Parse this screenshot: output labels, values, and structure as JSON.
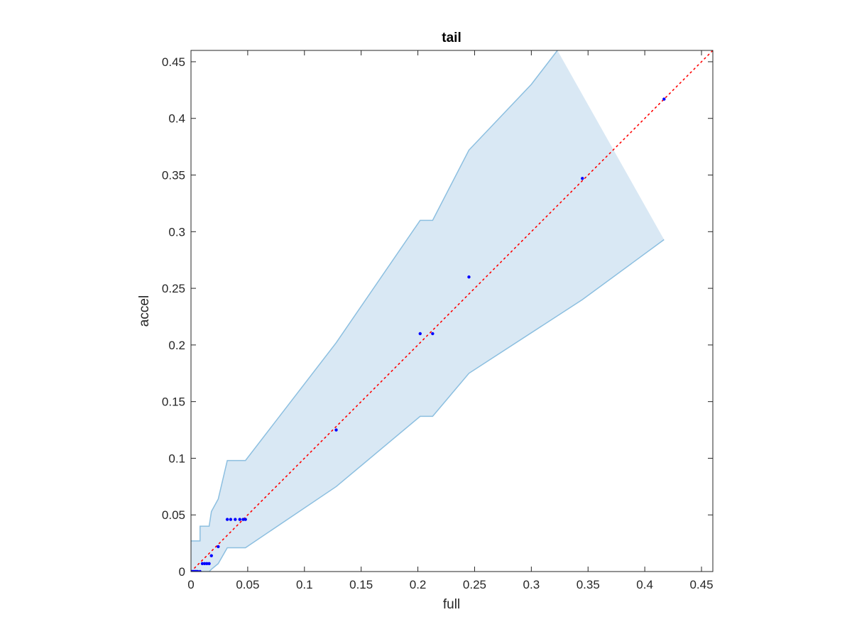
{
  "chart_data": {
    "type": "scatter",
    "title": "tail",
    "xlabel": "full",
    "ylabel": "accel",
    "xlim": [
      0,
      0.46
    ],
    "ylim": [
      0,
      0.46
    ],
    "xticks": [
      0,
      0.05,
      0.1,
      0.15,
      0.2,
      0.25,
      0.3,
      0.35,
      0.4,
      0.45
    ],
    "yticks": [
      0,
      0.05,
      0.1,
      0.15,
      0.2,
      0.25,
      0.3,
      0.35,
      0.4,
      0.45
    ],
    "xtick_labels": [
      "0",
      "0.05",
      "0.1",
      "0.15",
      "0.2",
      "0.25",
      "0.3",
      "0.35",
      "0.4",
      "0.45"
    ],
    "ytick_labels": [
      "0",
      "0.05",
      "0.1",
      "0.15",
      "0.2",
      "0.25",
      "0.3",
      "0.35",
      "0.4",
      "0.45"
    ],
    "grid": false,
    "colors": {
      "points": "#0000ff",
      "identity": "#ff0000",
      "band_fill": "#d9e8f4",
      "band_edge": "#8cbfe0",
      "axes": "#262626"
    },
    "points": [
      {
        "x": 0.0,
        "y": 0.0
      },
      {
        "x": 0.001,
        "y": 0.0
      },
      {
        "x": 0.002,
        "y": 0.0
      },
      {
        "x": 0.003,
        "y": 0.0
      },
      {
        "x": 0.004,
        "y": 0.0
      },
      {
        "x": 0.005,
        "y": 0.0
      },
      {
        "x": 0.006,
        "y": 0.0
      },
      {
        "x": 0.008,
        "y": 0.0
      },
      {
        "x": 0.01,
        "y": 0.007
      },
      {
        "x": 0.012,
        "y": 0.007
      },
      {
        "x": 0.014,
        "y": 0.007
      },
      {
        "x": 0.016,
        "y": 0.007
      },
      {
        "x": 0.018,
        "y": 0.014
      },
      {
        "x": 0.024,
        "y": 0.022
      },
      {
        "x": 0.032,
        "y": 0.046
      },
      {
        "x": 0.035,
        "y": 0.046
      },
      {
        "x": 0.039,
        "y": 0.046
      },
      {
        "x": 0.043,
        "y": 0.046
      },
      {
        "x": 0.046,
        "y": 0.046
      },
      {
        "x": 0.048,
        "y": 0.046
      },
      {
        "x": 0.128,
        "y": 0.125
      },
      {
        "x": 0.202,
        "y": 0.21
      },
      {
        "x": 0.213,
        "y": 0.21
      },
      {
        "x": 0.245,
        "y": 0.26
      },
      {
        "x": 0.345,
        "y": 0.347
      },
      {
        "x": 0.417,
        "y": 0.417
      }
    ],
    "band_upper": [
      [
        0.0,
        0.027
      ],
      [
        0.008,
        0.027
      ],
      [
        0.008,
        0.04
      ],
      [
        0.016,
        0.04
      ],
      [
        0.018,
        0.053
      ],
      [
        0.024,
        0.064
      ],
      [
        0.032,
        0.098
      ],
      [
        0.048,
        0.098
      ],
      [
        0.128,
        0.202
      ],
      [
        0.202,
        0.31
      ],
      [
        0.213,
        0.31
      ],
      [
        0.245,
        0.372
      ],
      [
        0.3,
        0.43
      ],
      [
        0.323,
        0.46
      ]
    ],
    "band_right": [
      [
        0.417,
        0.46
      ],
      [
        0.417,
        0.293
      ]
    ],
    "band_lower": [
      [
        0.417,
        0.293
      ],
      [
        0.345,
        0.24
      ],
      [
        0.245,
        0.175
      ],
      [
        0.213,
        0.137
      ],
      [
        0.202,
        0.137
      ],
      [
        0.128,
        0.075
      ],
      [
        0.048,
        0.021
      ],
      [
        0.032,
        0.021
      ],
      [
        0.024,
        0.007
      ],
      [
        0.018,
        0.002
      ],
      [
        0.016,
        0.0
      ],
      [
        0.0,
        0.0
      ]
    ],
    "identity_line": [
      [
        0,
        0
      ],
      [
        0.46,
        0.46
      ]
    ]
  }
}
